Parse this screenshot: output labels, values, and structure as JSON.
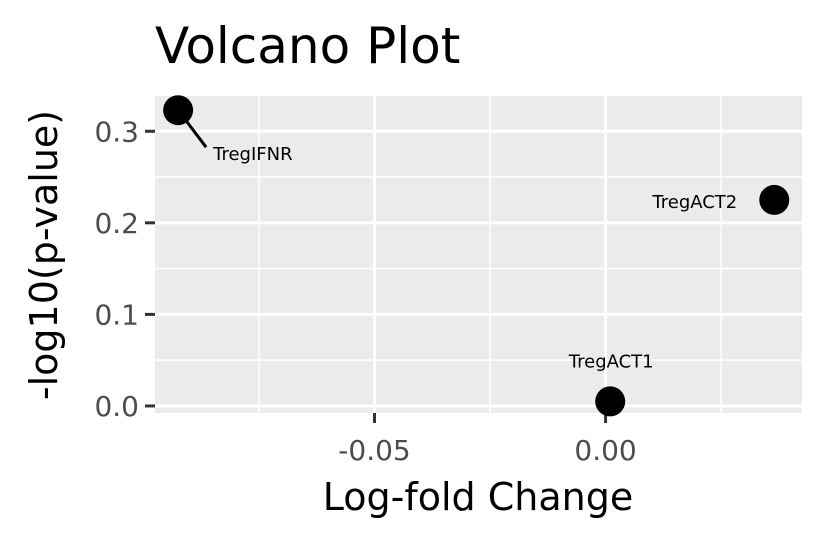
{
  "chart_data": {
    "type": "scatter",
    "title": "Volcano Plot",
    "xlabel": "Log-fold Change",
    "ylabel": "-log10(p-value)",
    "xlim": [
      -0.0975,
      0.0425
    ],
    "ylim": [
      -0.0077,
      0.3385
    ],
    "x_ticks": [
      -0.05,
      0.0
    ],
    "x_tick_labels": [
      "-0.05",
      "0.00"
    ],
    "x_minor_ticks": [
      -0.075,
      -0.025,
      0.025
    ],
    "y_ticks": [
      0.0,
      0.1,
      0.2,
      0.3
    ],
    "y_tick_labels": [
      "0.0",
      "0.1",
      "0.2",
      "0.3"
    ],
    "y_minor_ticks": [
      0.05,
      0.15,
      0.25
    ],
    "grid": true,
    "legend": "none",
    "colors": {
      "panel_background": "#ebebeb",
      "grid": "#ffffff",
      "point": "#000000",
      "tick_text": "#4d4d4d",
      "text": "#000000"
    },
    "points": [
      {
        "label": "TregIFNR",
        "x": -0.0925,
        "y": 0.323
      },
      {
        "label": "TregACT2",
        "x": 0.0365,
        "y": 0.225
      },
      {
        "label": "TregACT1",
        "x": 0.001,
        "y": 0.005
      }
    ]
  }
}
